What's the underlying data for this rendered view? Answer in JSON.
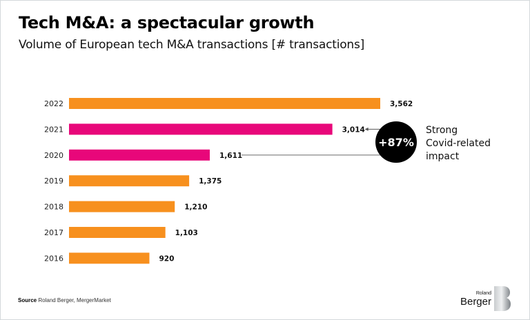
{
  "chart_data": {
    "type": "bar",
    "orientation": "horizontal",
    "title": "Tech M&A: a spectacular growth",
    "subtitle": "Volume of European tech M&A transactions [# transactions]",
    "categories": [
      "2022",
      "2021",
      "2020",
      "2019",
      "2018",
      "2017",
      "2016"
    ],
    "values": [
      3562,
      3014,
      1611,
      1375,
      1210,
      1103,
      920
    ],
    "value_labels": [
      "3,562",
      "3,014",
      "1,611",
      "1,375",
      "1,210",
      "1,103",
      "920"
    ],
    "highlighted": [
      false,
      true,
      true,
      false,
      false,
      false,
      false
    ],
    "colors": {
      "default": "#f7901e",
      "highlight": "#e8077a",
      "callout": "#000000",
      "connector": "#9b9b9b"
    },
    "xlabel": "",
    "ylabel": "",
    "xlim": [
      0,
      3562
    ],
    "grid": false,
    "annotation": {
      "badge": "+87%",
      "text_lines": [
        "Strong",
        "Covid-related",
        "impact"
      ],
      "from": "2020",
      "to": "2021"
    }
  },
  "footer": {
    "source_label": "Source",
    "source_text": "Roland Berger, MergerMarket"
  },
  "logo": {
    "line1": "Roland",
    "line2": "Berger"
  }
}
